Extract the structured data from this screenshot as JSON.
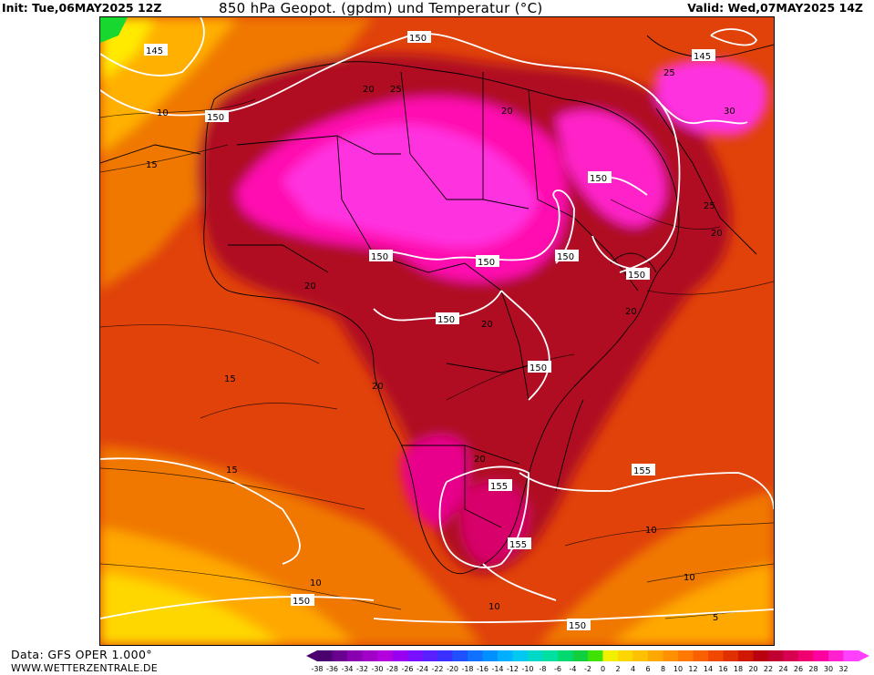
{
  "header": {
    "init": "Init: Tue,06MAY2025 12Z",
    "title": "850 hPa Geopot. (gpdm) und Temperatur (°C)",
    "valid": "Valid: Wed,07MAY2025 14Z"
  },
  "footer": {
    "data_source": "Data: GFS OPER 1.000°",
    "website": "WWW.WETTERZENTRALE.DE"
  },
  "colorbar": {
    "labels": [
      "-38",
      "-36",
      "-34",
      "-32",
      "-30",
      "-28",
      "-26",
      "-24",
      "-22",
      "-20",
      "-18",
      "-16",
      "-14",
      "-12",
      "-10",
      "-8",
      "-6",
      "-4",
      "-2",
      "0",
      "2",
      "4",
      "6",
      "8",
      "10",
      "12",
      "14",
      "16",
      "18",
      "20",
      "22",
      "24",
      "26",
      "28",
      "30",
      "32"
    ],
    "colors": [
      "#4b0070",
      "#6a0090",
      "#8800b0",
      "#a000c8",
      "#b400dc",
      "#9a00f0",
      "#7a10ff",
      "#5a20ff",
      "#3a30ff",
      "#2050ff",
      "#1070ff",
      "#0090ff",
      "#00b0ff",
      "#00c8f0",
      "#00d8c8",
      "#00e0a0",
      "#00d870",
      "#10d040",
      "#40e000",
      "#f0f000",
      "#ffd700",
      "#ffc000",
      "#ffa800",
      "#ff9000",
      "#ff7800",
      "#f86000",
      "#f04800",
      "#e03000",
      "#d01800",
      "#b80010",
      "#c00030",
      "#d80050",
      "#f00070",
      "#ff00a0",
      "#ff20d0",
      "#ff40ff"
    ]
  },
  "contour_labels": {
    "geopotential": [
      "150",
      "145",
      "150",
      "145",
      "150",
      "150",
      "150",
      "150",
      "150",
      "150",
      "150",
      "155",
      "155",
      "155",
      "150",
      "150"
    ],
    "temperature": [
      "10",
      "15",
      "20",
      "20",
      "25",
      "25",
      "30",
      "25",
      "20",
      "20",
      "20",
      "20",
      "20",
      "15",
      "15",
      "10",
      "10",
      "10",
      "10",
      "5",
      "20"
    ]
  },
  "colors": {
    "hot_magenta": "#ff00e6",
    "dark_red": "#a8001e",
    "red": "#d42a10",
    "orange": "#f07800",
    "yellow": "#ffea00",
    "green": "#18d830"
  }
}
